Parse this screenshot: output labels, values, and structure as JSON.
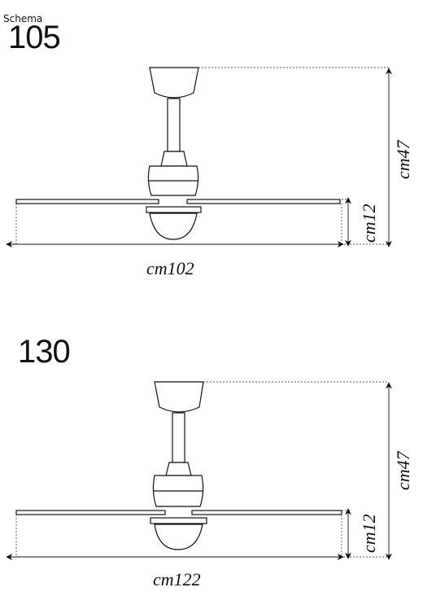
{
  "header": {
    "title": "Schema"
  },
  "models": [
    {
      "label": "105",
      "height_label": "cm47",
      "body_label": "cm12",
      "width_label": "cm102"
    },
    {
      "label": "130",
      "height_label": "cm47",
      "body_label": "cm12",
      "width_label": "cm122"
    }
  ],
  "colors": {
    "line": "#111111",
    "dotted": "#555555"
  }
}
